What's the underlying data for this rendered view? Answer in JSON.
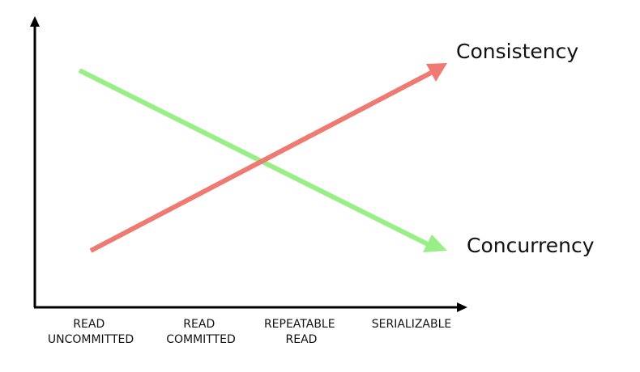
{
  "diagram": {
    "x_categories": [
      {
        "lines": [
          "READ",
          "UNCOMMITTED"
        ]
      },
      {
        "lines": [
          "READ",
          "COMMITTED"
        ]
      },
      {
        "lines": [
          "REPEATABLE",
          "READ"
        ]
      },
      {
        "lines": [
          "SERIALIZABLE"
        ]
      }
    ],
    "series": [
      {
        "name": "Consistency",
        "trend": "increasing",
        "color": "#ee7a72"
      },
      {
        "name": "Concurrency",
        "trend": "decreasing",
        "color": "#98ef86"
      }
    ],
    "axis_color": "#000000"
  }
}
